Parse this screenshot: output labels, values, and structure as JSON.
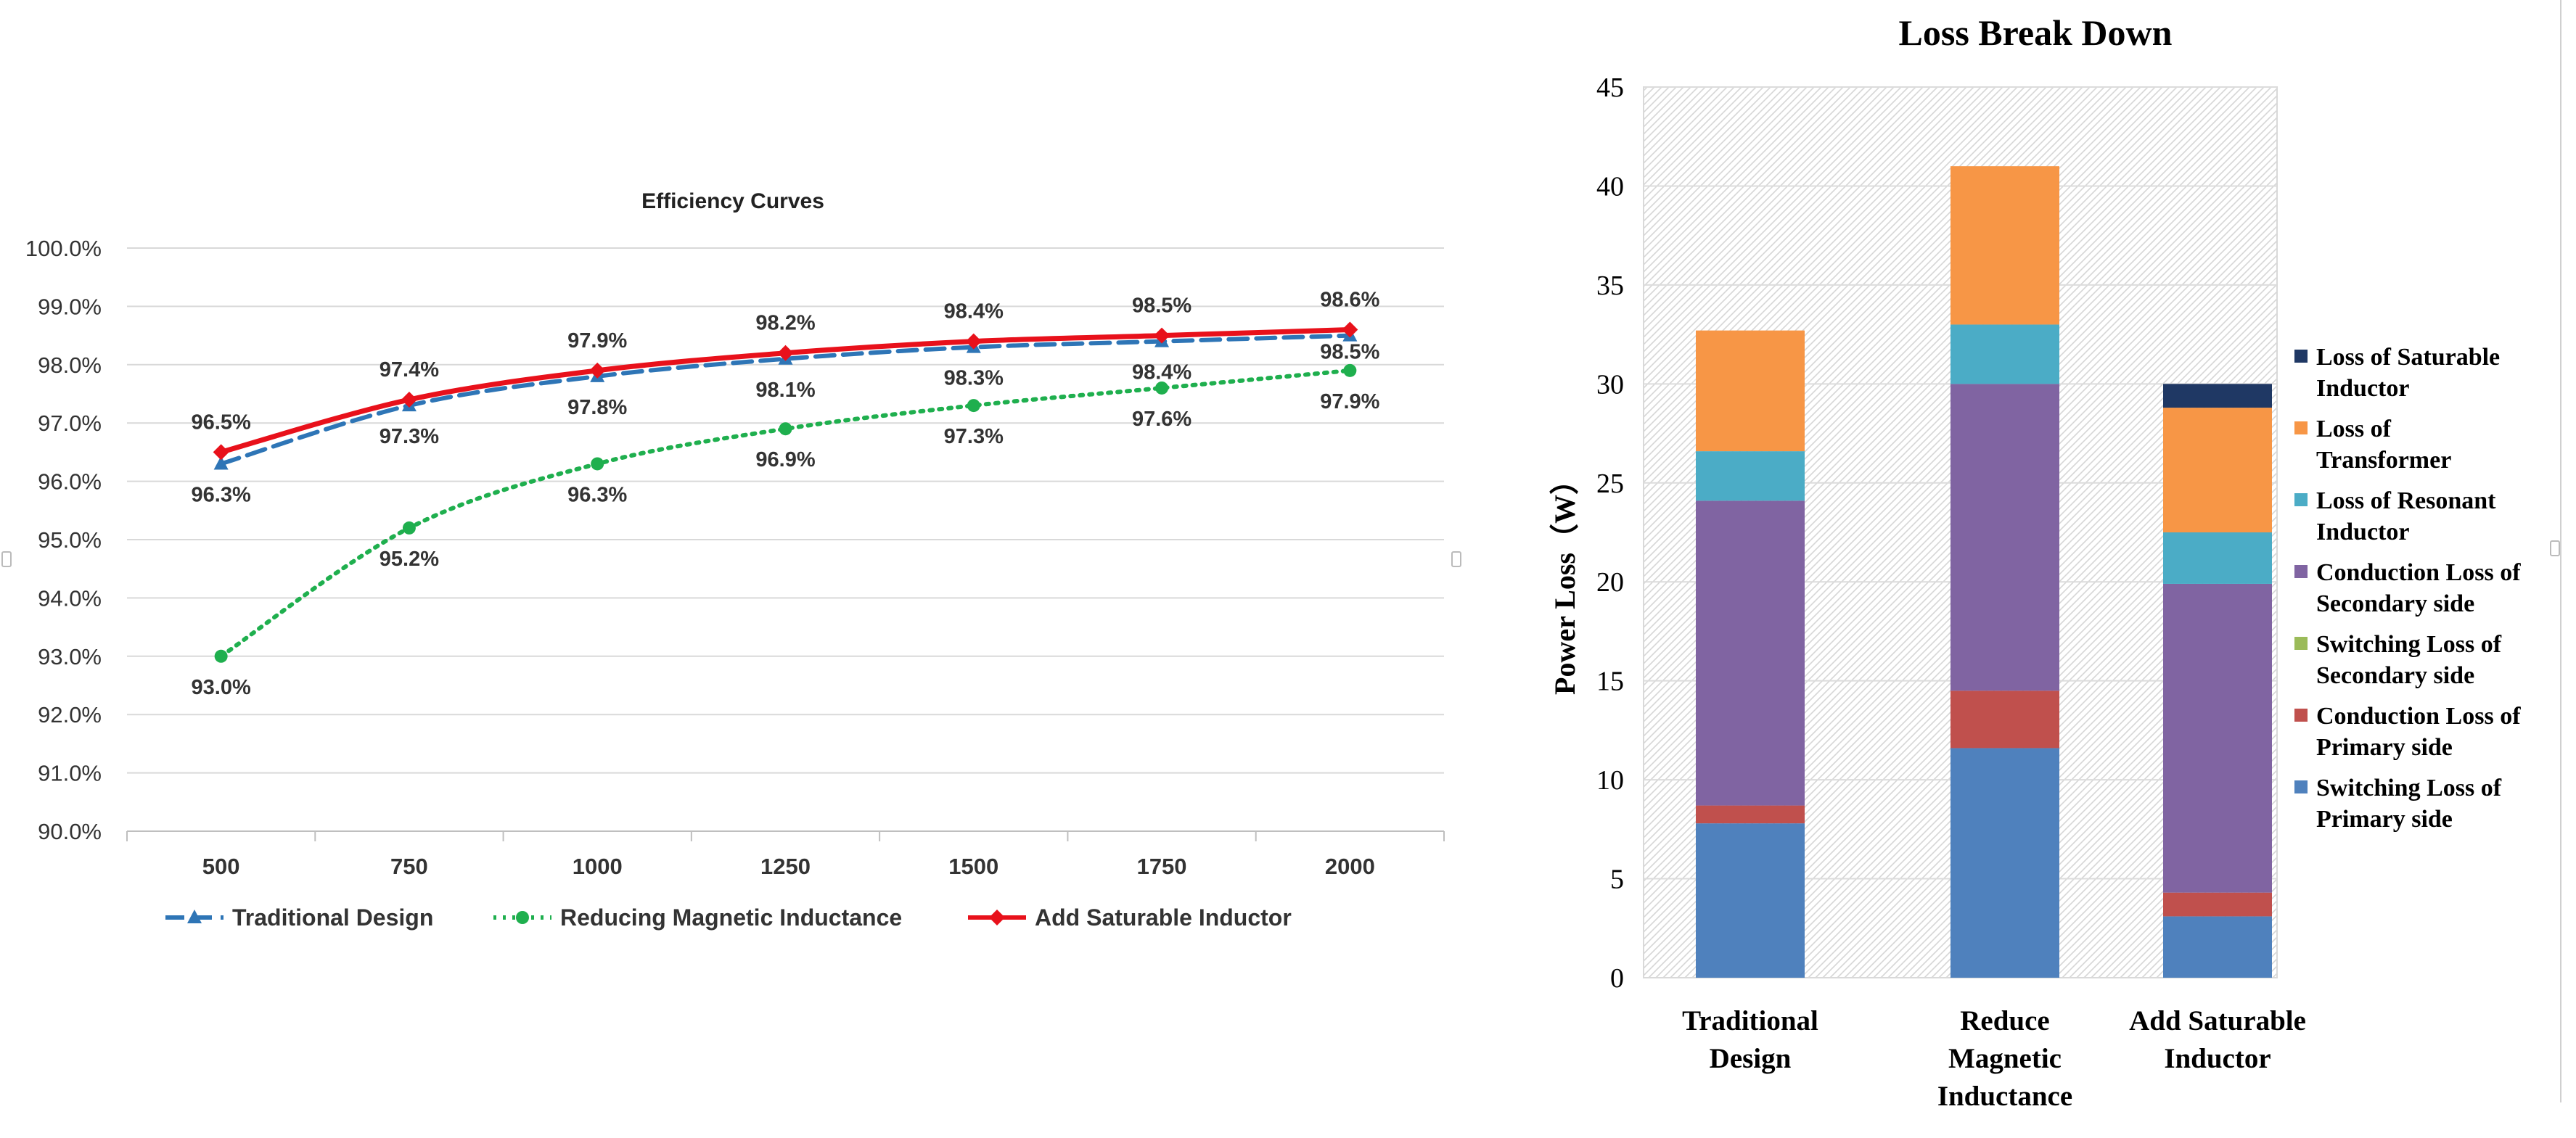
{
  "charts": [
    {
      "type": "line",
      "title": "Efficiency Curves",
      "xlabel": "",
      "ylabel": "",
      "categories": [
        "500",
        "750",
        "1000",
        "1250",
        "1500",
        "1750",
        "2000"
      ],
      "ylim": [
        0.9,
        1.0
      ],
      "y_ticks": [
        "90.0%",
        "91.0%",
        "92.0%",
        "93.0%",
        "94.0%",
        "95.0%",
        "96.0%",
        "97.0%",
        "98.0%",
        "99.0%",
        "100.0%"
      ],
      "grid": true,
      "legend_position": "bottom",
      "series": [
        {
          "name": "Traditional Design",
          "values": [
            0.963,
            0.973,
            0.978,
            0.981,
            0.983,
            0.984,
            0.985
          ],
          "labels": [
            "96.3%",
            "97.3%",
            "97.8%",
            "98.1%",
            "98.3%",
            "98.4%",
            "98.5%"
          ],
          "color": "#2E75B6",
          "line_style": "dashed",
          "marker": "triangle"
        },
        {
          "name": "Reducing Magnetic Inductance",
          "values": [
            0.93,
            0.952,
            0.963,
            0.969,
            0.973,
            0.976,
            0.979
          ],
          "labels": [
            "93.0%",
            "95.2%",
            "96.3%",
            "96.9%",
            "97.3%",
            "97.6%",
            "97.9%"
          ],
          "color": "#1FAF4E",
          "line_style": "dotted",
          "marker": "circle"
        },
        {
          "name": "Add Saturable Inductor",
          "values": [
            0.965,
            0.974,
            0.979,
            0.982,
            0.984,
            0.985,
            0.986
          ],
          "labels": [
            "96.5%",
            "97.4%",
            "97.9%",
            "98.2%",
            "98.4%",
            "98.5%",
            "98.6%"
          ],
          "color": "#E8111B",
          "line_style": "solid",
          "marker": "diamond"
        }
      ]
    },
    {
      "type": "stacked-bar",
      "title": "Loss Break Down",
      "xlabel": "",
      "ylabel": "Power Loss（W）",
      "categories": [
        [
          "Traditional",
          "Design"
        ],
        [
          "Reduce",
          "Magnetic",
          "Inductance"
        ],
        [
          "Add Saturable",
          "Inductor"
        ]
      ],
      "ylim": [
        0,
        45
      ],
      "y_ticks": [
        "0",
        "5",
        "10",
        "15",
        "20",
        "25",
        "30",
        "35",
        "40",
        "45"
      ],
      "legend_position": "right",
      "series": [
        {
          "name": [
            "Switching Loss of",
            "Primary side"
          ],
          "color": "#4F81BD",
          "values": [
            7.8,
            11.6,
            3.1
          ]
        },
        {
          "name": [
            "Conduction Loss of",
            "Primary side"
          ],
          "color": "#C0504D",
          "values": [
            0.9,
            2.9,
            1.2
          ]
        },
        {
          "name": [
            "Switching Loss of",
            "Secondary side"
          ],
          "color": "#9BBB59",
          "values": [
            0.0,
            0.0,
            0.0
          ]
        },
        {
          "name": [
            "Conduction Loss of",
            "Secondary side"
          ],
          "color": "#8064A2",
          "values": [
            15.4,
            15.5,
            15.6
          ]
        },
        {
          "name": [
            "Loss of Resonant",
            "Inductor"
          ],
          "color": "#4BACC6",
          "values": [
            2.5,
            3.0,
            2.6
          ]
        },
        {
          "name": [
            "Loss of",
            "Transformer"
          ],
          "color": "#F79646",
          "values": [
            6.1,
            8.0,
            6.3
          ]
        },
        {
          "name": [
            "Loss of Saturable",
            "Inductor"
          ],
          "color": "#1F3864",
          "values": [
            0.0,
            0.0,
            1.2
          ]
        }
      ]
    }
  ]
}
